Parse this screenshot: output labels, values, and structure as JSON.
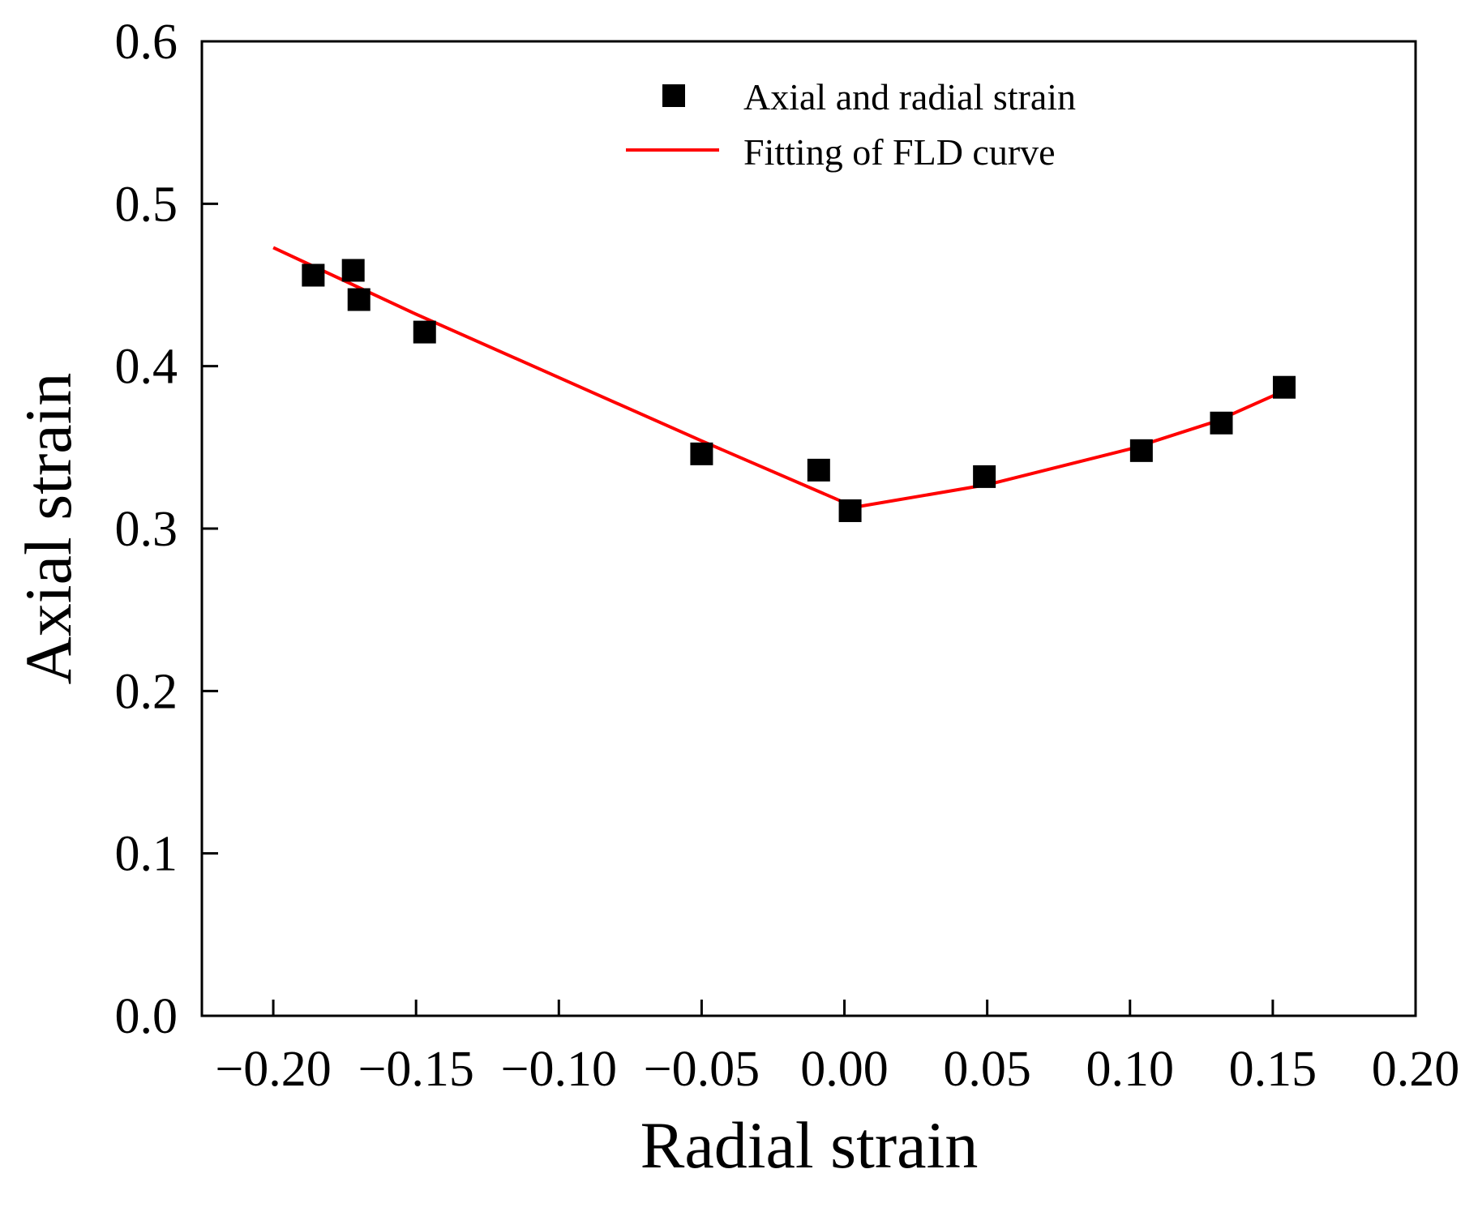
{
  "chart_data": {
    "type": "scatter",
    "title": "",
    "xlabel": "Radial strain",
    "ylabel": "Axial strain",
    "xlim": [
      -0.225,
      0.2
    ],
    "ylim": [
      0.0,
      0.6
    ],
    "x_ticks": [
      -0.2,
      -0.15,
      -0.1,
      -0.05,
      0.0,
      0.05,
      0.1,
      0.15,
      0.2
    ],
    "x_tick_labels": [
      "−0.20",
      "−0.15",
      "−0.10",
      "−0.05",
      "0.00",
      "0.05",
      "0.10",
      "0.15",
      "0.20"
    ],
    "y_ticks": [
      0.0,
      0.1,
      0.2,
      0.3,
      0.4,
      0.5,
      0.6
    ],
    "y_tick_labels": [
      "0.0",
      "0.1",
      "0.2",
      "0.3",
      "0.4",
      "0.5",
      "0.6"
    ],
    "grid": false,
    "legend_position": "top-right",
    "series": [
      {
        "name": "Axial and radial strain",
        "kind": "scatter",
        "marker": "square",
        "color": "#000000",
        "points": [
          {
            "x": -0.186,
            "y": 0.456
          },
          {
            "x": -0.172,
            "y": 0.459
          },
          {
            "x": -0.17,
            "y": 0.441
          },
          {
            "x": -0.147,
            "y": 0.421
          },
          {
            "x": -0.05,
            "y": 0.346
          },
          {
            "x": -0.009,
            "y": 0.336
          },
          {
            "x": 0.002,
            "y": 0.311
          },
          {
            "x": 0.049,
            "y": 0.332
          },
          {
            "x": 0.104,
            "y": 0.348
          },
          {
            "x": 0.132,
            "y": 0.365
          },
          {
            "x": 0.154,
            "y": 0.387
          }
        ]
      },
      {
        "name": "Fitting of FLD curve",
        "kind": "line",
        "color": "#ff0000",
        "points": [
          {
            "x": -0.2,
            "y": 0.473
          },
          {
            "x": -0.15,
            "y": 0.432
          },
          {
            "x": -0.1,
            "y": 0.393
          },
          {
            "x": -0.05,
            "y": 0.354
          },
          {
            "x": 0.0,
            "y": 0.316
          },
          {
            "x": 0.003,
            "y": 0.313
          },
          {
            "x": 0.05,
            "y": 0.327
          },
          {
            "x": 0.1,
            "y": 0.349
          },
          {
            "x": 0.13,
            "y": 0.366
          },
          {
            "x": 0.153,
            "y": 0.384
          }
        ]
      }
    ]
  }
}
